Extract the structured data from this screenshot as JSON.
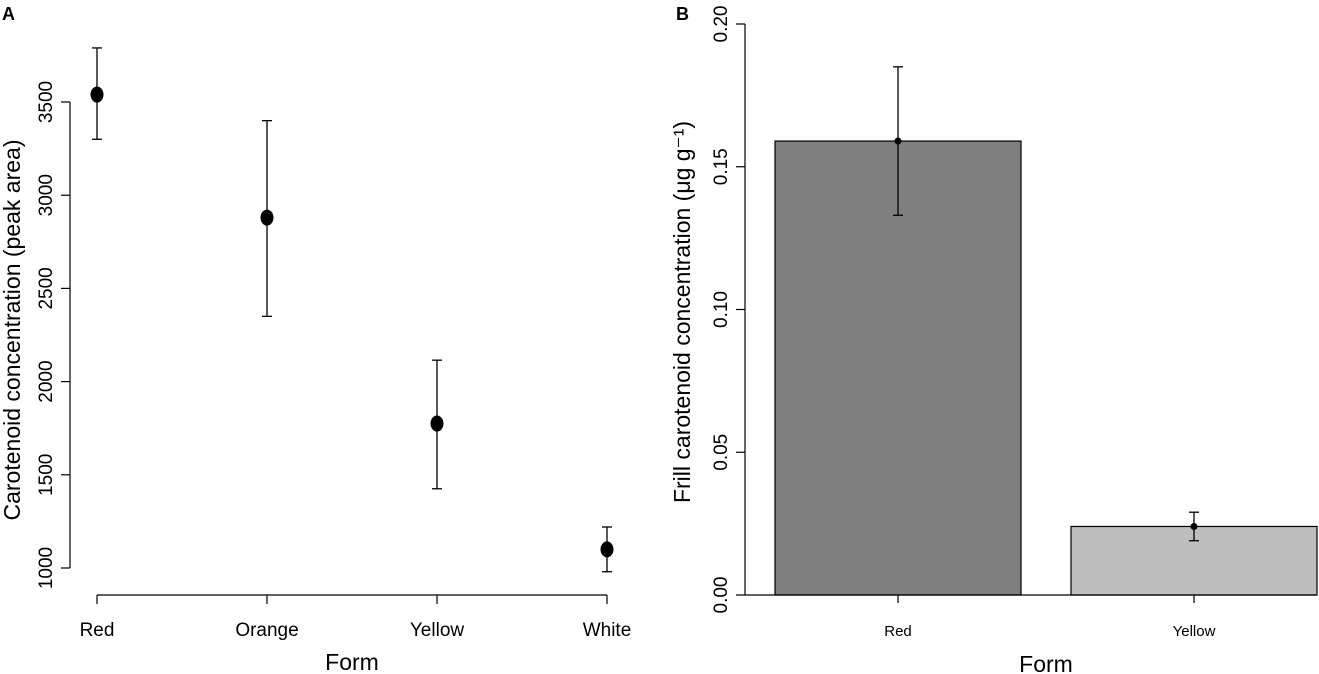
{
  "chart_data": [
    {
      "panel": "A",
      "type": "scatter",
      "categories": [
        "Red",
        "Orange",
        "Yellow",
        "White"
      ],
      "values": [
        3540,
        2880,
        1775,
        1100
      ],
      "error_low": [
        3300,
        2350,
        1425,
        980
      ],
      "error_high": [
        3790,
        3400,
        2115,
        1220
      ],
      "xlabel": "Form",
      "ylabel": "Carotenoid concentration (peak area)",
      "ylim": [
        900,
        3800
      ],
      "yticks": [
        1000,
        1500,
        2000,
        2500,
        3000,
        3500
      ],
      "grid": false,
      "marker_color": "#000000"
    },
    {
      "panel": "B",
      "type": "bar",
      "categories": [
        "Red",
        "Yellow"
      ],
      "values": [
        0.159,
        0.024
      ],
      "error_low": [
        0.133,
        0.019
      ],
      "error_high": [
        0.185,
        0.029
      ],
      "xlabel": "Form",
      "ylabel": "Frill carotenoid concentration (μg g⁻¹)",
      "ylim": [
        0,
        0.2
      ],
      "yticks": [
        "0.00",
        "0.05",
        "0.10",
        "0.15",
        "0.20"
      ],
      "grid": false,
      "bar_colors": [
        "#7f7f7f",
        "#bebebe"
      ]
    }
  ]
}
